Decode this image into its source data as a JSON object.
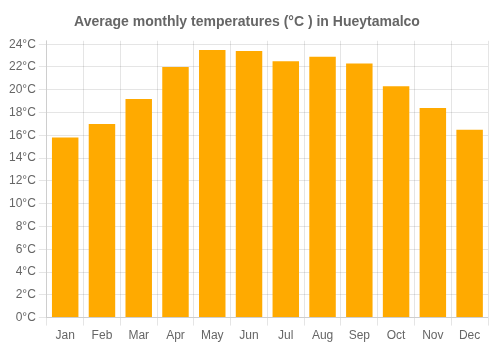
{
  "chart_data": {
    "type": "bar",
    "title": "Average monthly temperatures (°C ) in Hueytamalco",
    "categories": [
      "Jan",
      "Feb",
      "Mar",
      "Apr",
      "May",
      "Jun",
      "Jul",
      "Aug",
      "Sep",
      "Oct",
      "Nov",
      "Dec"
    ],
    "values": [
      15.8,
      17.0,
      19.2,
      22.0,
      23.5,
      23.4,
      22.5,
      22.9,
      22.3,
      20.3,
      18.4,
      16.5
    ],
    "color": "#FFAA00",
    "ylim": [
      0,
      24.3
    ],
    "yticks": [
      {
        "value": 0,
        "label": "0°C"
      },
      {
        "value": 2,
        "label": "2°C"
      },
      {
        "value": 4,
        "label": "4°C"
      },
      {
        "value": 6,
        "label": "6°C"
      },
      {
        "value": 8,
        "label": "8°C"
      },
      {
        "value": 10,
        "label": "10°C"
      },
      {
        "value": 12,
        "label": "12°C"
      },
      {
        "value": 14,
        "label": "14°C"
      },
      {
        "value": 16,
        "label": "16°C"
      },
      {
        "value": 18,
        "label": "18°C"
      },
      {
        "value": 20,
        "label": "20°C"
      },
      {
        "value": 22,
        "label": "22°C"
      },
      {
        "value": 24,
        "label": "24°C"
      }
    ],
    "grid": true
  }
}
